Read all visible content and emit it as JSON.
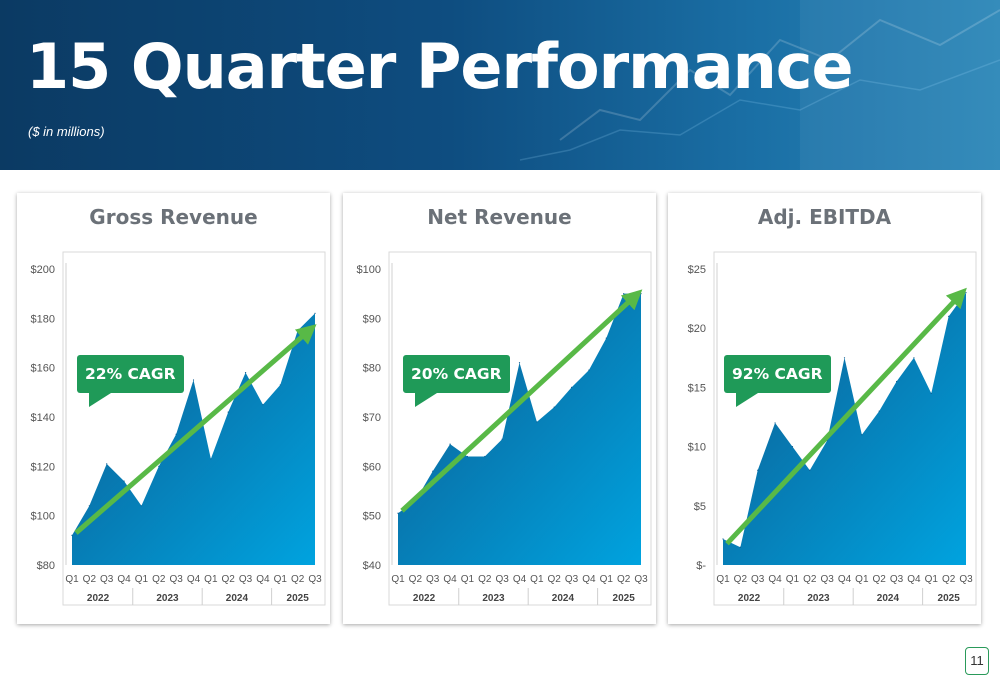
{
  "header": {
    "title": "15 Quarter Performance",
    "subtitle": "($ in millions)"
  },
  "page_number": "11",
  "colors": {
    "area_top": "#0d5a8f",
    "area_bottom": "#00a3df",
    "trend_arrow": "#58b947",
    "badge": "#1f9a58"
  },
  "chart_data": [
    {
      "type": "area",
      "title": "Gross Revenue",
      "badge": "22% CAGR",
      "categories": [
        "Q1",
        "Q2",
        "Q3",
        "Q4",
        "Q1",
        "Q2",
        "Q3",
        "Q4",
        "Q1",
        "Q2",
        "Q3",
        "Q4",
        "Q1",
        "Q2",
        "Q3"
      ],
      "years": [
        {
          "label": "2022",
          "quarters": 4
        },
        {
          "label": "2023",
          "quarters": 4
        },
        {
          "label": "2024",
          "quarters": 4
        },
        {
          "label": "2025",
          "quarters": 3
        }
      ],
      "values": [
        92,
        104,
        121,
        114,
        104,
        120,
        133,
        155,
        123,
        142,
        158,
        145,
        153,
        175,
        182
      ],
      "ylim": [
        80,
        200
      ],
      "yticks": [
        80,
        100,
        120,
        140,
        160,
        180,
        200
      ],
      "ytick_labels": [
        "$80",
        "$100",
        "$120",
        "$140",
        "$160",
        "$180",
        "$200"
      ],
      "trend": [
        93,
        175
      ]
    },
    {
      "type": "area",
      "title": "Net Revenue",
      "badge": "20% CAGR",
      "categories": [
        "Q1",
        "Q2",
        "Q3",
        "Q4",
        "Q1",
        "Q2",
        "Q3",
        "Q4",
        "Q1",
        "Q2",
        "Q3",
        "Q4",
        "Q1",
        "Q2",
        "Q3"
      ],
      "years": [
        {
          "label": "2022",
          "quarters": 4
        },
        {
          "label": "2023",
          "quarters": 4
        },
        {
          "label": "2024",
          "quarters": 4
        },
        {
          "label": "2025",
          "quarters": 3
        }
      ],
      "values": [
        50.5,
        53,
        59,
        64.5,
        62,
        62,
        65.5,
        81,
        69,
        72,
        76,
        79.5,
        86,
        95,
        95
      ],
      "ylim": [
        40,
        100
      ],
      "yticks": [
        40,
        50,
        60,
        70,
        80,
        90,
        100
      ],
      "ytick_labels": [
        "$40",
        "$50",
        "$60",
        "$70",
        "$80",
        "$90",
        "$100"
      ],
      "trend": [
        51,
        94.5
      ]
    },
    {
      "type": "area",
      "title": "Adj. EBITDA",
      "badge": "92% CAGR",
      "categories": [
        "Q1",
        "Q2",
        "Q3",
        "Q4",
        "Q1",
        "Q2",
        "Q3",
        "Q4",
        "Q1",
        "Q2",
        "Q3",
        "Q4",
        "Q1",
        "Q2",
        "Q3"
      ],
      "years": [
        {
          "label": "2022",
          "quarters": 4
        },
        {
          "label": "2023",
          "quarters": 4
        },
        {
          "label": "2024",
          "quarters": 4
        },
        {
          "label": "2025",
          "quarters": 3
        }
      ],
      "values": [
        2.2,
        1.5,
        8,
        12,
        10,
        8,
        10.5,
        17.5,
        11,
        13,
        15.5,
        17.5,
        14.5,
        21,
        23
      ],
      "ylim": [
        0,
        25
      ],
      "yticks": [
        0,
        5,
        10,
        15,
        20,
        25
      ],
      "ytick_labels": [
        "$-",
        "$5",
        "$10",
        "$15",
        "$20",
        "$25"
      ],
      "trend": [
        1.8,
        22.8
      ]
    }
  ]
}
